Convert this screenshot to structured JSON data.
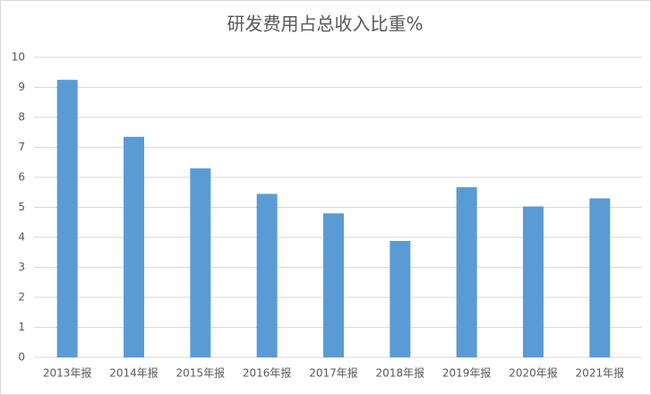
{
  "chart_data": {
    "type": "bar",
    "title": "研发费用占总收入比重%",
    "categories": [
      "2013年报",
      "2014年报",
      "2015年报",
      "2016年报",
      "2017年报",
      "2018年报",
      "2019年报",
      "2020年报",
      "2021年报"
    ],
    "values": [
      9.25,
      7.35,
      6.3,
      5.45,
      4.8,
      3.88,
      5.67,
      5.03,
      5.3
    ],
    "color": "#5b9bd5",
    "ylim": [
      0,
      10
    ],
    "yticks": [
      0,
      1,
      2,
      3,
      4,
      5,
      6,
      7,
      8,
      9,
      10
    ],
    "grid": true
  }
}
